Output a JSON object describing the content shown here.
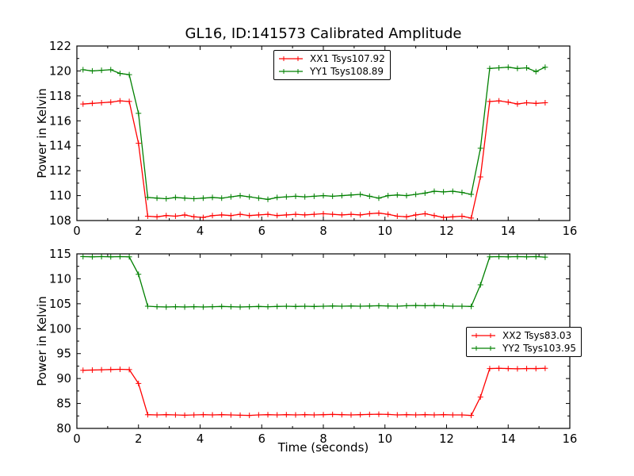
{
  "title": "GL16, ID:141573 Calibrated Amplitude",
  "colors": {
    "xx_series": "#ff0000",
    "yy_series": "#008000",
    "axes": "#000000",
    "background": "#ffffff"
  },
  "chart_data": [
    {
      "type": "line",
      "ylabel": "Power in Kelvin",
      "xlim": [
        0,
        16
      ],
      "ylim": [
        108,
        122
      ],
      "xticks": [
        0,
        2,
        4,
        6,
        8,
        10,
        12,
        14,
        16
      ],
      "yticks": [
        108,
        110,
        112,
        114,
        116,
        118,
        120,
        122
      ],
      "grid": false,
      "legend_position": "upper center",
      "x": [
        0.2,
        0.5,
        0.8,
        1.1,
        1.4,
        1.7,
        2.0,
        2.3,
        2.6,
        2.9,
        3.2,
        3.5,
        3.8,
        4.1,
        4.4,
        4.7,
        5.0,
        5.3,
        5.6,
        5.9,
        6.2,
        6.5,
        6.8,
        7.1,
        7.4,
        7.7,
        8.0,
        8.3,
        8.6,
        8.9,
        9.2,
        9.5,
        9.8,
        10.1,
        10.4,
        10.7,
        11.0,
        11.3,
        11.6,
        11.9,
        12.2,
        12.5,
        12.8,
        13.1,
        13.4,
        13.7,
        14.0,
        14.3,
        14.6,
        14.9,
        15.2
      ],
      "series": [
        {
          "name": "XX1 Tsys107.92",
          "color": "#ff0000",
          "marker": "+",
          "values": [
            117.35,
            117.4,
            117.45,
            117.5,
            117.6,
            117.55,
            114.2,
            108.35,
            108.3,
            108.4,
            108.35,
            108.45,
            108.3,
            108.25,
            108.4,
            108.45,
            108.4,
            108.5,
            108.4,
            108.45,
            108.5,
            108.4,
            108.45,
            108.5,
            108.45,
            108.5,
            108.55,
            108.5,
            108.45,
            108.5,
            108.45,
            108.55,
            108.6,
            108.5,
            108.35,
            108.3,
            108.45,
            108.55,
            108.4,
            108.25,
            108.3,
            108.35,
            108.2,
            111.5,
            117.55,
            117.6,
            117.5,
            117.35,
            117.45,
            117.4,
            117.45
          ]
        },
        {
          "name": "YY1 Tsys108.89",
          "color": "#008000",
          "marker": "+",
          "values": [
            120.1,
            120.0,
            120.05,
            120.1,
            119.8,
            119.7,
            116.6,
            109.85,
            109.8,
            109.75,
            109.85,
            109.8,
            109.75,
            109.8,
            109.85,
            109.8,
            109.9,
            110.0,
            109.9,
            109.8,
            109.7,
            109.85,
            109.9,
            109.95,
            109.9,
            109.95,
            110.0,
            109.95,
            110.0,
            110.05,
            110.1,
            109.95,
            109.8,
            110.0,
            110.05,
            110.0,
            110.1,
            110.2,
            110.35,
            110.3,
            110.35,
            110.25,
            110.1,
            113.8,
            120.2,
            120.25,
            120.3,
            120.2,
            120.25,
            119.95,
            120.3
          ]
        }
      ]
    },
    {
      "type": "line",
      "xlabel": "Time (seconds)",
      "ylabel": "Power in Kelvin",
      "xlim": [
        0,
        16
      ],
      "ylim": [
        80,
        115
      ],
      "xticks": [
        0,
        2,
        4,
        6,
        8,
        10,
        12,
        14,
        16
      ],
      "yticks": [
        80,
        85,
        90,
        95,
        100,
        105,
        110,
        115
      ],
      "grid": false,
      "legend_position": "center right",
      "x": [
        0.2,
        0.5,
        0.8,
        1.1,
        1.4,
        1.7,
        2.0,
        2.3,
        2.6,
        2.9,
        3.2,
        3.5,
        3.8,
        4.1,
        4.4,
        4.7,
        5.0,
        5.3,
        5.6,
        5.9,
        6.2,
        6.5,
        6.8,
        7.1,
        7.4,
        7.7,
        8.0,
        8.3,
        8.6,
        8.9,
        9.2,
        9.5,
        9.8,
        10.1,
        10.4,
        10.7,
        11.0,
        11.3,
        11.6,
        11.9,
        12.2,
        12.5,
        12.8,
        13.1,
        13.4,
        13.7,
        14.0,
        14.3,
        14.6,
        14.9,
        15.2
      ],
      "series": [
        {
          "name": "XX2 Tsys83.03",
          "color": "#ff0000",
          "marker": "+",
          "values": [
            91.65,
            91.7,
            91.75,
            91.8,
            91.85,
            91.8,
            89.0,
            82.75,
            82.7,
            82.75,
            82.7,
            82.65,
            82.7,
            82.75,
            82.7,
            82.75,
            82.7,
            82.65,
            82.6,
            82.7,
            82.75,
            82.7,
            82.75,
            82.7,
            82.75,
            82.7,
            82.75,
            82.8,
            82.75,
            82.7,
            82.75,
            82.8,
            82.85,
            82.8,
            82.7,
            82.75,
            82.7,
            82.75,
            82.7,
            82.75,
            82.7,
            82.7,
            82.6,
            86.3,
            92.0,
            92.05,
            92.0,
            91.95,
            92.0,
            92.0,
            92.05
          ]
        },
        {
          "name": "YY2 Tsys103.95",
          "color": "#008000",
          "marker": "+",
          "values": [
            114.45,
            114.4,
            114.45,
            114.4,
            114.45,
            114.4,
            110.9,
            104.5,
            104.4,
            104.35,
            104.4,
            104.35,
            104.4,
            104.35,
            104.4,
            104.45,
            104.4,
            104.35,
            104.4,
            104.45,
            104.4,
            104.45,
            104.5,
            104.45,
            104.5,
            104.45,
            104.5,
            104.55,
            104.5,
            104.55,
            104.5,
            104.55,
            104.6,
            104.55,
            104.5,
            104.6,
            104.65,
            104.6,
            104.65,
            104.6,
            104.5,
            104.5,
            104.45,
            108.8,
            114.4,
            114.45,
            114.4,
            114.45,
            114.4,
            114.45,
            114.35
          ]
        }
      ]
    }
  ]
}
